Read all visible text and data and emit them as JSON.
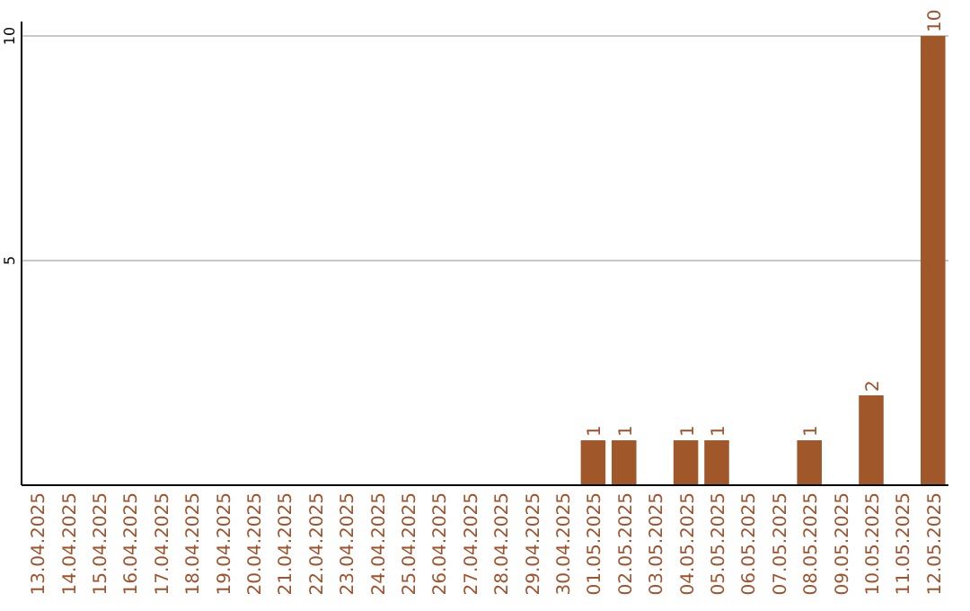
{
  "chart_data": {
    "type": "bar",
    "categories": [
      "13.04.2025",
      "14.04.2025",
      "15.04.2025",
      "16.04.2025",
      "17.04.2025",
      "18.04.2025",
      "19.04.2025",
      "20.04.2025",
      "21.04.2025",
      "22.04.2025",
      "23.04.2025",
      "24.04.2025",
      "25.04.2025",
      "26.04.2025",
      "27.04.2025",
      "28.04.2025",
      "29.04.2025",
      "30.04.2025",
      "01.05.2025",
      "02.05.2025",
      "03.05.2025",
      "04.05.2025",
      "05.05.2025",
      "06.05.2025",
      "07.05.2025",
      "08.05.2025",
      "09.05.2025",
      "10.05.2025",
      "11.05.2025",
      "12.05.2025"
    ],
    "values": [
      0,
      0,
      0,
      0,
      0,
      0,
      0,
      0,
      0,
      0,
      0,
      0,
      0,
      0,
      0,
      0,
      0,
      0,
      1,
      1,
      0,
      1,
      1,
      0,
      0,
      1,
      0,
      2,
      0,
      10
    ],
    "value_labels": [
      null,
      null,
      null,
      null,
      null,
      null,
      null,
      null,
      null,
      null,
      null,
      null,
      null,
      null,
      null,
      null,
      null,
      null,
      "1",
      "1",
      null,
      "1",
      "1",
      null,
      null,
      "1",
      null,
      "2",
      null,
      "10"
    ],
    "color": "#a0582a",
    "ylim": [
      0,
      10
    ],
    "yticks": [
      {
        "value": 0,
        "label": null
      },
      5,
      10
    ],
    "grid": "y"
  }
}
